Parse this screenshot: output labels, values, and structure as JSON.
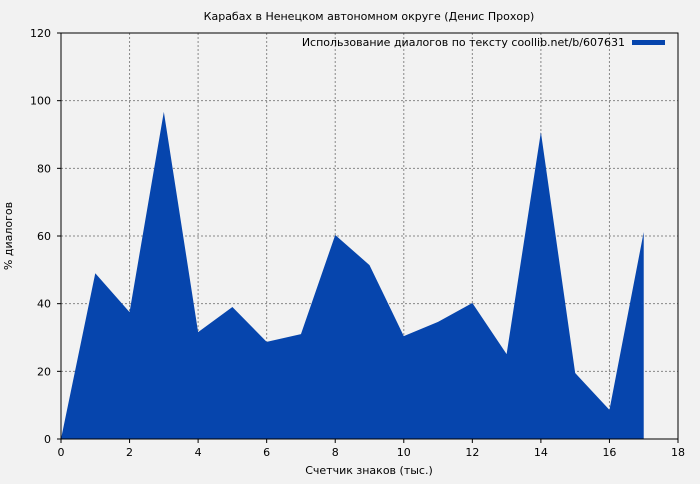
{
  "chart_data": {
    "type": "area",
    "title": "Карабах в Ненецком автономном округе (Денис Прохор)",
    "xlabel": "Счетчик знаков (тыс.)",
    "ylabel": "% диалогов",
    "xlim": [
      0,
      18
    ],
    "ylim": [
      0,
      120
    ],
    "xticks": [
      0,
      2,
      4,
      6,
      8,
      10,
      12,
      14,
      16,
      18
    ],
    "yticks": [
      0,
      20,
      40,
      60,
      80,
      100,
      120
    ],
    "grid": true,
    "legend_position": "top-right",
    "series": [
      {
        "name": "Использование диалогов по тексту coollib.net/b/607631",
        "color": "#0645ad",
        "x": [
          0,
          1,
          2,
          3,
          4,
          5,
          6,
          7,
          8,
          9,
          10,
          11,
          12,
          13,
          14,
          15,
          16,
          17
        ],
        "y": [
          0,
          49,
          37.5,
          96.7,
          31.6,
          39,
          28.7,
          31,
          60.3,
          51.4,
          30.4,
          34.6,
          40.2,
          25.1,
          90.7,
          19.5,
          8.6,
          61.2
        ]
      }
    ]
  }
}
